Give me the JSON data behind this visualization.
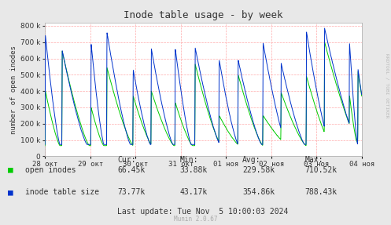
{
  "title": "Inode table usage - by week",
  "ylabel": "number of open inodes",
  "watermark": "RRDTOOL / TOBI OETIKER",
  "munin_version": "Munin 2.0.67",
  "background_color": "#e8e8e8",
  "plot_bg_color": "#ffffff",
  "grid_color": "#ffaaaa",
  "title_color": "#333333",
  "text_color": "#333333",
  "line1_color": "#00cc00",
  "line2_color": "#0033cc",
  "yticks": [
    0,
    100000,
    200000,
    300000,
    400000,
    500000,
    600000,
    700000,
    800000
  ],
  "xlabel_dates": [
    "28 окт",
    "29 окт",
    "30 окт",
    "31 окт",
    "01 ноя",
    "02 ноя",
    "03 ноя",
    "04 ноя"
  ],
  "legend": [
    {
      "label": "open inodes",
      "color": "#00cc00"
    },
    {
      "label": "inode table size",
      "color": "#0033cc"
    }
  ],
  "stats": {
    "headers": [
      "Cur:",
      "Min:",
      "Avg:",
      "Max:"
    ],
    "open_inodes": [
      "66.45k",
      "33.88k",
      "229.58k",
      "710.52k"
    ],
    "inode_table_size": [
      "73.77k",
      "43.17k",
      "354.86k",
      "788.43k"
    ]
  },
  "last_update": "Last update: Tue Nov  5 10:00:03 2024"
}
